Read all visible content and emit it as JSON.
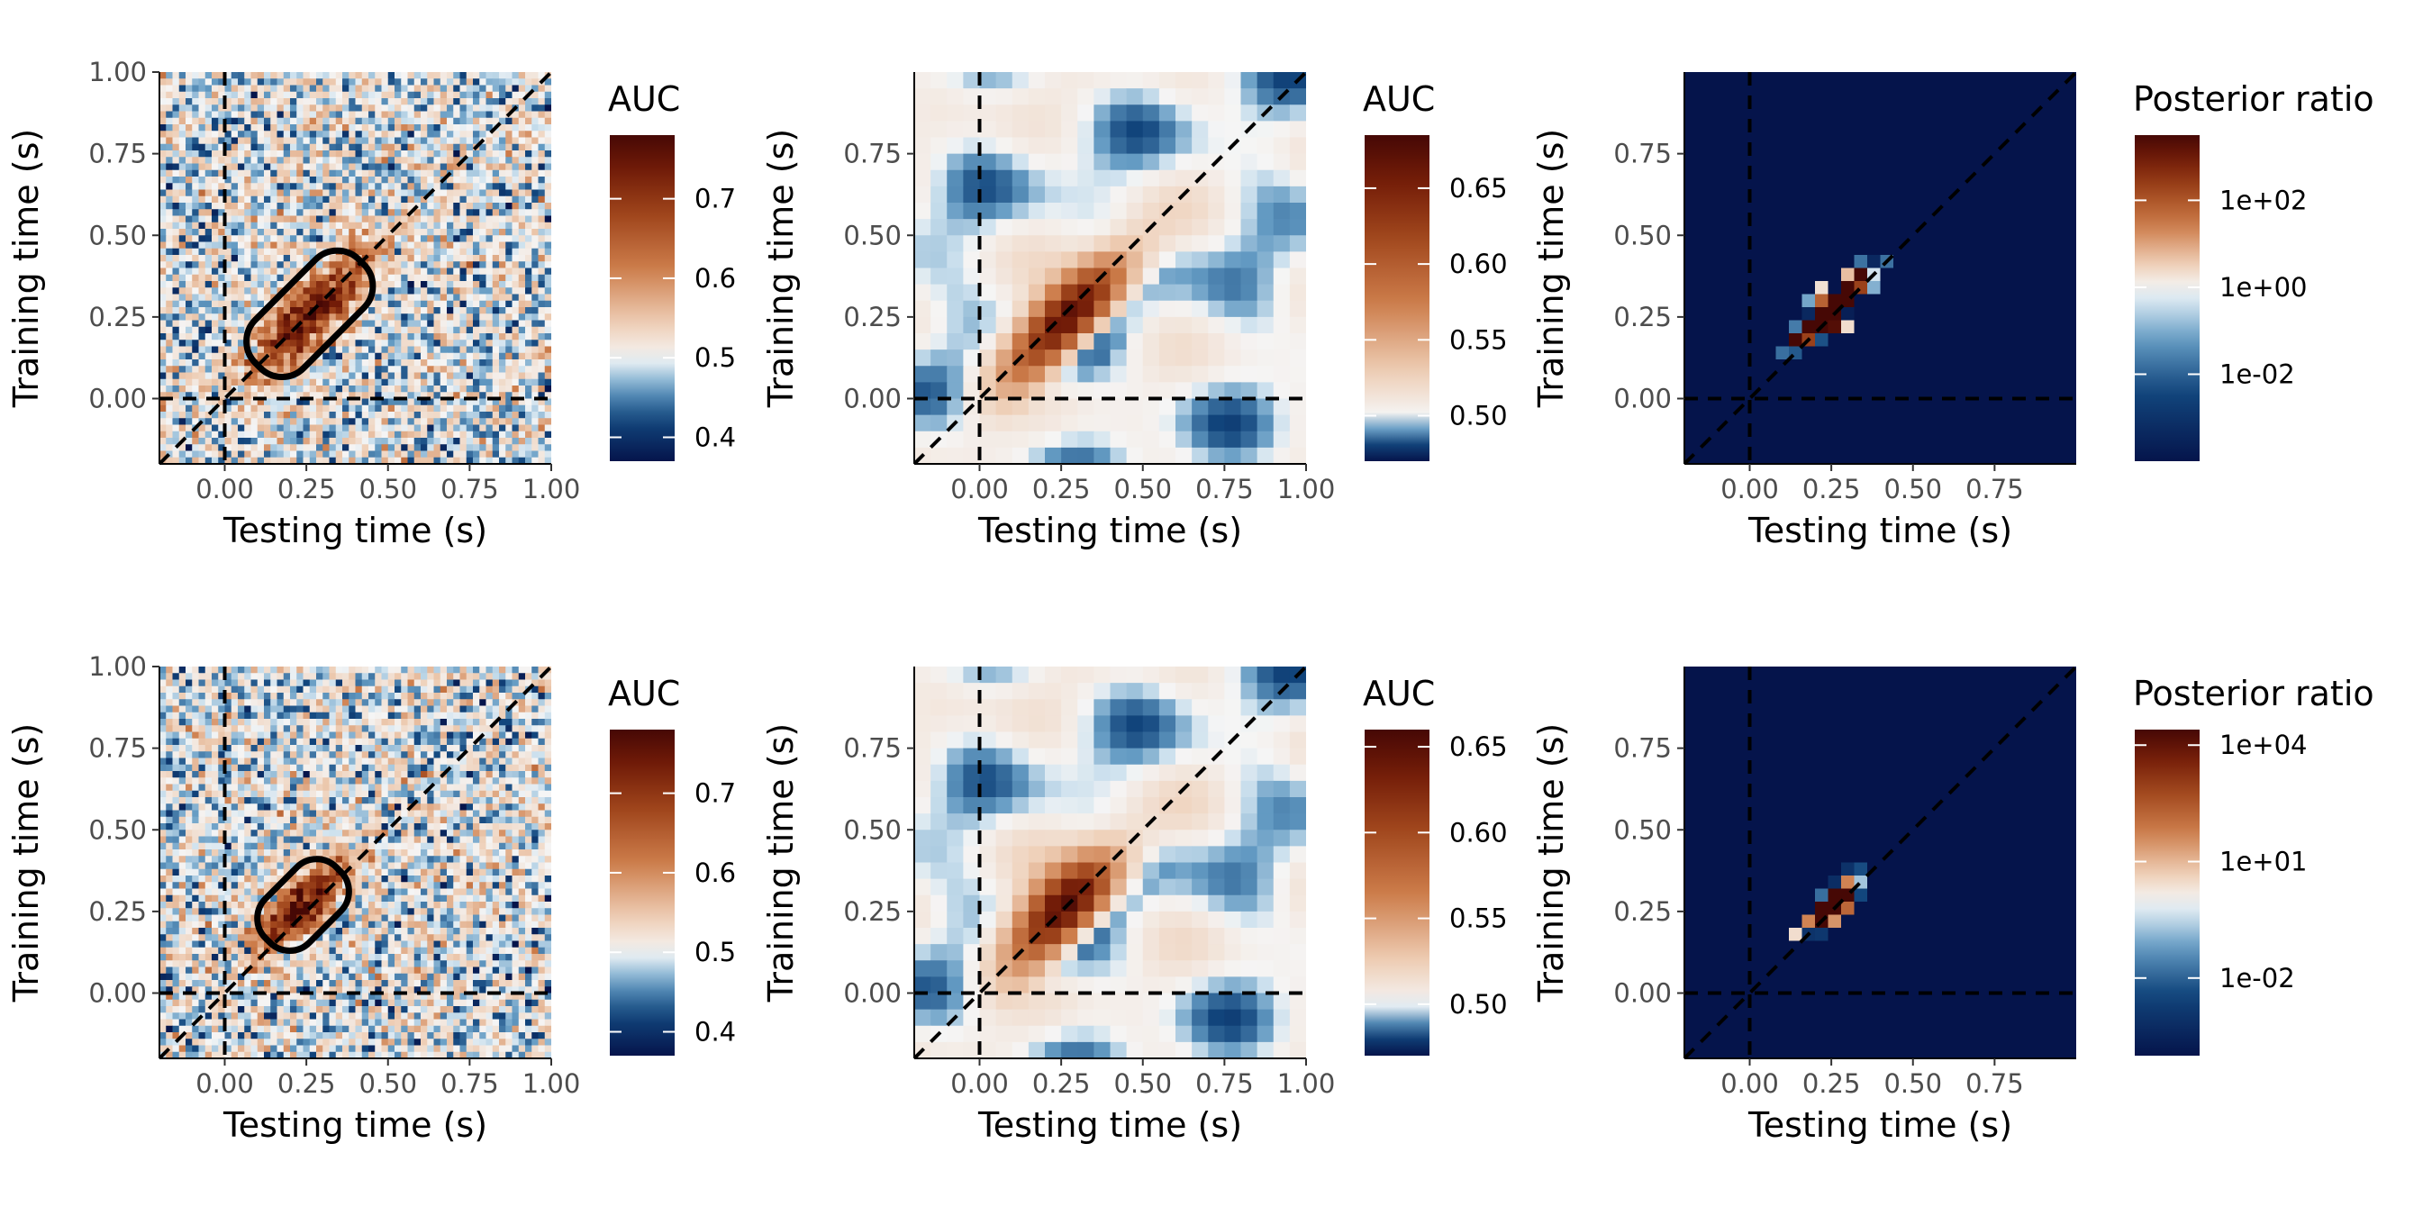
{
  "figure": {
    "rows": 2,
    "columns": 3
  },
  "chart_data": [
    {
      "type": "heatmap",
      "variant": "noisy",
      "xlabel": "Testing time (s)",
      "ylabel": "Training time (s)",
      "xlim": [
        -0.2,
        1.0
      ],
      "ylim": [
        -0.2,
        1.0
      ],
      "xticks": [
        "0.00",
        "0.25",
        "0.50",
        "0.75",
        "1.00"
      ],
      "yticks": [
        "0.00",
        "0.25",
        "0.50",
        "0.75",
        "1.00"
      ],
      "xtick_values": [
        0,
        0.25,
        0.5,
        0.75,
        1.0
      ],
      "ytick_values": [
        0,
        0.25,
        0.5,
        0.75,
        1.0
      ],
      "grid_resolution": 60,
      "blob": {
        "center_train": 0.26,
        "center_test": 0.26,
        "peak_auc": 0.76,
        "spread_diag": 0.19,
        "spread_offdiag": 0.055
      },
      "contour": true,
      "reference_lines": [
        "x = 0",
        "y = 0",
        "x = y"
      ],
      "legend": {
        "title": "AUC",
        "scale": "diverging",
        "range": [
          0.37,
          0.78
        ],
        "center": 0.5,
        "ticks": [
          "0.4",
          "0.5",
          "0.6",
          "0.7"
        ],
        "tick_values": [
          0.4,
          0.5,
          0.6,
          0.7
        ],
        "placement": "right"
      }
    },
    {
      "type": "heatmap",
      "variant": "smooth",
      "xlabel": "Testing time (s)",
      "ylabel": "Training time (s)",
      "xlim": [
        -0.2,
        1.0
      ],
      "ylim": [
        -0.2,
        1.0
      ],
      "xticks": [
        "0.00",
        "0.25",
        "0.50",
        "0.75",
        "1.00"
      ],
      "yticks": [
        "0.00",
        "0.25",
        "0.50",
        "0.75"
      ],
      "xtick_values": [
        0,
        0.25,
        0.5,
        0.75,
        1.0
      ],
      "ytick_values": [
        0,
        0.25,
        0.5,
        0.75
      ],
      "grid_resolution": 24,
      "blob": {
        "center_train": 0.25,
        "center_test": 0.27,
        "peak_auc": 0.68,
        "spread_diag": 0.17,
        "spread_offdiag": 0.06
      },
      "contour": false,
      "reference_lines": [
        "x = 0",
        "y = 0",
        "x = y"
      ],
      "legend": {
        "title": "AUC",
        "scale": "diverging",
        "range": [
          0.47,
          0.685
        ],
        "center": 0.5,
        "ticks": [
          "0.50",
          "0.55",
          "0.60",
          "0.65"
        ],
        "tick_values": [
          0.5,
          0.55,
          0.6,
          0.65
        ],
        "placement": "right"
      }
    },
    {
      "type": "heatmap",
      "variant": "posterior",
      "xlabel": "Testing time (s)",
      "ylabel": "Training time (s)",
      "xlim": [
        -0.2,
        1.0
      ],
      "ylim": [
        -0.2,
        1.0
      ],
      "xticks": [
        "0.00",
        "0.25",
        "0.50",
        "0.75"
      ],
      "yticks": [
        "0.00",
        "0.25",
        "0.50",
        "0.75"
      ],
      "xtick_values": [
        0,
        0.25,
        0.5,
        0.75
      ],
      "ytick_values": [
        0,
        0.25,
        0.5,
        0.75
      ],
      "grid_resolution": 30,
      "blob": {
        "center_train": 0.27,
        "center_test": 0.25,
        "spread_diag": 0.11,
        "spread_offdiag": 0.03
      },
      "contour": false,
      "reference_lines": [
        "x = 0",
        "y = 0",
        "x = y"
      ],
      "legend": {
        "title": "Posterior ratio",
        "scale": "log-diverging",
        "range_log10": [
          -4.0,
          3.5
        ],
        "center_log10": 0,
        "ticks": [
          "1e-02",
          "1e+00",
          "1e+02"
        ],
        "tick_values_log10": [
          -2,
          0,
          2
        ],
        "placement": "right"
      }
    },
    {
      "type": "heatmap",
      "variant": "noisy",
      "xlabel": "Testing time (s)",
      "ylabel": "Training time (s)",
      "xlim": [
        -0.2,
        1.0
      ],
      "ylim": [
        -0.2,
        1.0
      ],
      "xticks": [
        "0.00",
        "0.25",
        "0.50",
        "0.75",
        "1.00"
      ],
      "yticks": [
        "0.00",
        "0.25",
        "0.50",
        "0.75",
        "1.00"
      ],
      "xtick_values": [
        0,
        0.25,
        0.5,
        0.75,
        1.0
      ],
      "ytick_values": [
        0,
        0.25,
        0.5,
        0.75,
        1.0
      ],
      "grid_resolution": 60,
      "blob": {
        "center_train": 0.27,
        "center_test": 0.24,
        "peak_auc": 0.76,
        "spread_diag": 0.13,
        "spread_offdiag": 0.05
      },
      "contour": true,
      "reference_lines": [
        "x = 0",
        "y = 0",
        "x = y"
      ],
      "legend": {
        "title": "AUC",
        "scale": "diverging",
        "range": [
          0.37,
          0.78
        ],
        "center": 0.5,
        "ticks": [
          "0.4",
          "0.5",
          "0.6",
          "0.7"
        ],
        "tick_values": [
          0.4,
          0.5,
          0.6,
          0.7
        ],
        "placement": "right"
      }
    },
    {
      "type": "heatmap",
      "variant": "smooth",
      "xlabel": "Testing time (s)",
      "ylabel": "Training time (s)",
      "xlim": [
        -0.2,
        1.0
      ],
      "ylim": [
        -0.2,
        1.0
      ],
      "xticks": [
        "0.00",
        "0.25",
        "0.50",
        "0.75",
        "1.00"
      ],
      "yticks": [
        "0.00",
        "0.25",
        "0.50",
        "0.75"
      ],
      "xtick_values": [
        0,
        0.25,
        0.5,
        0.75,
        1.0
      ],
      "ytick_values": [
        0,
        0.25,
        0.5,
        0.75
      ],
      "grid_resolution": 24,
      "blob": {
        "center_train": 0.26,
        "center_test": 0.26,
        "peak_auc": 0.66,
        "spread_diag": 0.15,
        "spread_offdiag": 0.065
      },
      "contour": false,
      "reference_lines": [
        "x = 0",
        "y = 0",
        "x = y"
      ],
      "legend": {
        "title": "AUC",
        "scale": "diverging",
        "range": [
          0.47,
          0.66
        ],
        "center": 0.5,
        "ticks": [
          "0.50",
          "0.55",
          "0.60",
          "0.65"
        ],
        "tick_values": [
          0.5,
          0.55,
          0.6,
          0.65
        ],
        "placement": "right"
      }
    },
    {
      "type": "heatmap",
      "variant": "posterior",
      "xlabel": "Testing time (s)",
      "ylabel": "Training time (s)",
      "xlim": [
        -0.2,
        1.0
      ],
      "ylim": [
        -0.2,
        1.0
      ],
      "xticks": [
        "0.00",
        "0.25",
        "0.50",
        "0.75"
      ],
      "yticks": [
        "0.00",
        "0.25",
        "0.50",
        "0.75"
      ],
      "xtick_values": [
        0,
        0.25,
        0.5,
        0.75
      ],
      "ytick_values": [
        0,
        0.25,
        0.5,
        0.75
      ],
      "grid_resolution": 30,
      "blob": {
        "center_train": 0.27,
        "center_test": 0.25,
        "spread_diag": 0.07,
        "spread_offdiag": 0.028
      },
      "contour": false,
      "reference_lines": [
        "x = 0",
        "y = 0",
        "x = y"
      ],
      "legend": {
        "title": "Posterior ratio",
        "scale": "log-diverging",
        "range_log10": [
          -4.0,
          4.4
        ],
        "center_log10": 0,
        "ticks": [
          "1e-02",
          "1e+01",
          "1e+04"
        ],
        "tick_values_log10": [
          -2,
          1,
          4
        ],
        "placement": "right"
      }
    }
  ]
}
